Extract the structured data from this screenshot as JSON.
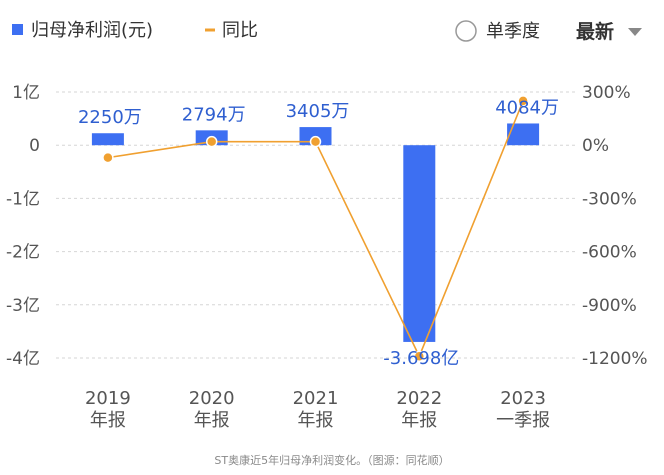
{
  "chart_data": {
    "type": "bar",
    "categories": [
      [
        "2019",
        "年报"
      ],
      [
        "2020",
        "年报"
      ],
      [
        "2021",
        "年报"
      ],
      [
        "2022",
        "年报"
      ],
      [
        "2023",
        "一季报"
      ]
    ],
    "series": [
      {
        "name": "归母净利润(元)",
        "type": "bar",
        "axis": "left",
        "color": "#3d6ff2",
        "values": [
          22500000,
          27940000,
          34050000,
          -369800000,
          40840000
        ],
        "labels": [
          "2250万",
          "2794万",
          "3405万",
          "-3.698亿",
          "4084万"
        ]
      },
      {
        "name": "同比",
        "type": "line",
        "axis": "right",
        "color": "#f0a030",
        "values": [
          -70,
          20,
          20,
          -1190,
          250
        ]
      }
    ],
    "left_axis": {
      "min": -400000000,
      "max": 100000000,
      "ticks": [
        100000000,
        0,
        -100000000,
        -200000000,
        -300000000,
        -400000000
      ],
      "tick_labels": [
        "1亿",
        "0",
        "-1亿",
        "-2亿",
        "-3亿",
        "-4亿"
      ]
    },
    "right_axis": {
      "min": -1200,
      "max": 300,
      "ticks": [
        300,
        0,
        -300,
        -600,
        -900,
        -1200
      ],
      "tick_labels": [
        "300%",
        "0%",
        "-300%",
        "-600%",
        "-900%",
        "-1200%"
      ]
    },
    "grid": true,
    "legend": {
      "position": "top-left"
    }
  },
  "controls": {
    "season_toggle": "单季度",
    "sort_select": "最新"
  },
  "caption": "ST奥康近5年归母净利润变化。（图源：同花顺）"
}
